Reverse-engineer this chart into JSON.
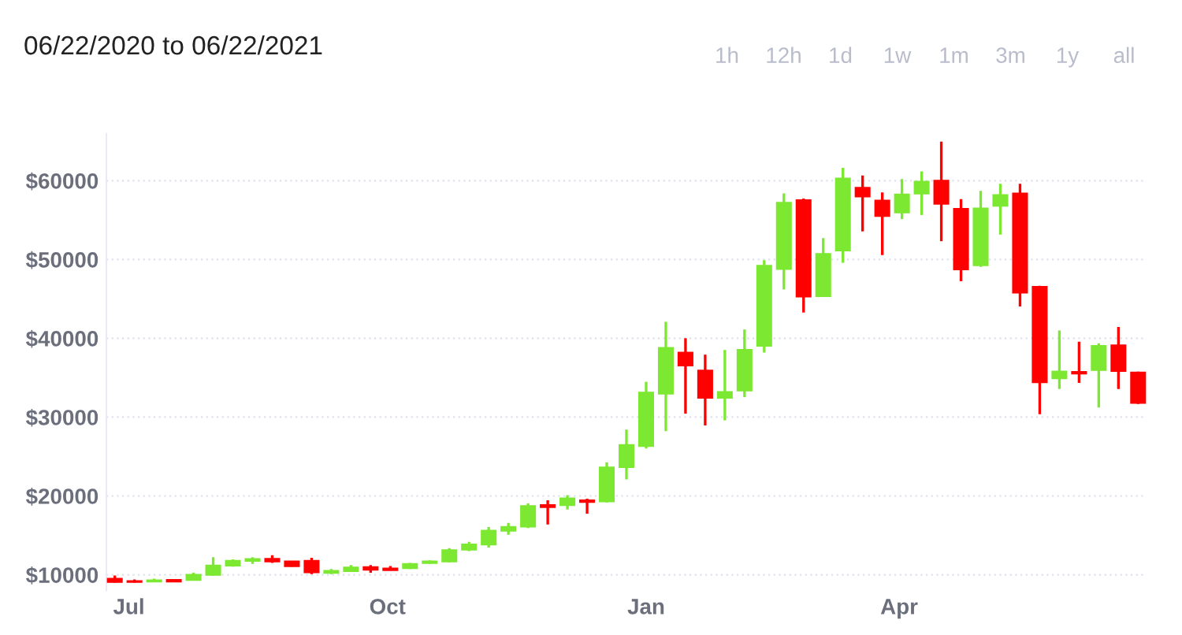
{
  "chart_data": {
    "type": "candlestick",
    "title": "06/22/2020 to 06/22/2021",
    "annotations": [
      "1h",
      "12h",
      "1d",
      "1w",
      "1m",
      "3m",
      "1y",
      "all"
    ],
    "x": [
      "2020-06-26",
      "2020-07-03",
      "2020-07-10",
      "2020-07-17",
      "2020-07-24",
      "2020-07-31",
      "2020-08-07",
      "2020-08-14",
      "2020-08-21",
      "2020-08-28",
      "2020-09-04",
      "2020-09-11",
      "2020-09-18",
      "2020-09-25",
      "2020-10-02",
      "2020-10-09",
      "2020-10-16",
      "2020-10-23",
      "2020-10-30",
      "2020-11-06",
      "2020-11-13",
      "2020-11-20",
      "2020-11-27",
      "2020-12-04",
      "2020-12-11",
      "2020-12-18",
      "2020-12-25",
      "2021-01-01",
      "2021-01-08",
      "2021-01-15",
      "2021-01-22",
      "2021-01-29",
      "2021-02-05",
      "2021-02-12",
      "2021-02-19",
      "2021-02-26",
      "2021-03-05",
      "2021-03-12",
      "2021-03-19",
      "2021-03-26",
      "2021-04-02",
      "2021-04-09",
      "2021-04-16",
      "2021-04-23",
      "2021-04-30",
      "2021-05-07",
      "2021-05-14",
      "2021-05-21",
      "2021-05-28",
      "2021-06-04",
      "2021-06-11",
      "2021-06-18",
      "2021-06-25"
    ],
    "ohlc": [
      [
        9500,
        9900,
        9000,
        9100
      ],
      [
        9200,
        9400,
        9000,
        9100
      ],
      [
        9150,
        9500,
        9100,
        9300
      ],
      [
        9350,
        9450,
        9050,
        9150
      ],
      [
        9350,
        10260,
        9300,
        10000
      ],
      [
        10000,
        12220,
        9870,
        11170
      ],
      [
        11170,
        11960,
        11040,
        11760
      ],
      [
        11760,
        12220,
        11370,
        12000
      ],
      [
        12020,
        12480,
        11500,
        11700
      ],
      [
        11690,
        11700,
        11040,
        11100
      ],
      [
        11760,
        12150,
        10070,
        10330
      ],
      [
        10250,
        10720,
        10070,
        10500
      ],
      [
        10460,
        11240,
        10390,
        10920
      ],
      [
        10960,
        11240,
        10260,
        10650
      ],
      [
        10800,
        11100,
        10520,
        10600
      ],
      [
        10850,
        11500,
        10720,
        11370
      ],
      [
        11500,
        11830,
        11370,
        11700
      ],
      [
        11700,
        13390,
        11570,
        13130
      ],
      [
        13200,
        14170,
        13000,
        13850
      ],
      [
        13850,
        16060,
        13450,
        15600
      ],
      [
        15600,
        16580,
        15080,
        16060
      ],
      [
        16120,
        19050,
        15930,
        18720
      ],
      [
        18850,
        19440,
        16380,
        18600
      ],
      [
        18850,
        20110,
        18270,
        19700
      ],
      [
        19440,
        19640,
        17750,
        19240
      ],
      [
        19310,
        24260,
        19180,
        23610
      ],
      [
        23670,
        28430,
        22110,
        26470
      ],
      [
        26340,
        34480,
        26020,
        33110
      ],
      [
        32980,
        42100,
        28230,
        38780
      ],
      [
        38190,
        40010,
        30440,
        36560
      ],
      [
        35910,
        37930,
        28950,
        32460
      ],
      [
        32460,
        38520,
        29600,
        33180
      ],
      [
        33370,
        41120,
        32530,
        38520
      ],
      [
        39040,
        49910,
        38190,
        49190
      ],
      [
        48800,
        58370,
        46200,
        57200
      ],
      [
        57530,
        57720,
        43270,
        45290
      ],
      [
        45350,
        52710,
        45290,
        50690
      ],
      [
        51150,
        61630,
        49580,
        60260
      ],
      [
        59090,
        60650,
        53560,
        57980
      ],
      [
        57460,
        58500,
        50560,
        55510
      ],
      [
        55960,
        60200,
        55120,
        58240
      ],
      [
        58370,
        61170,
        55640,
        59870
      ],
      [
        60000,
        64950,
        52320,
        57070
      ],
      [
        56420,
        57660,
        47240,
        48740
      ],
      [
        49260,
        58700,
        49060,
        56480
      ],
      [
        56810,
        59610,
        53160,
        58180
      ],
      [
        58370,
        59610,
        44050,
        45810
      ],
      [
        46520,
        46650,
        30380,
        34420
      ],
      [
        34940,
        40990,
        33570,
        35780
      ],
      [
        35720,
        39560,
        34350,
        35520
      ],
      [
        35980,
        39370,
        31230,
        39040
      ],
      [
        39100,
        41450,
        33570,
        35850
      ],
      [
        35650,
        35780,
        31680,
        31810
      ]
    ],
    "colors": [
      "#ff0000",
      "#ff0000",
      "#7de831",
      "#ff0000",
      "#7de831",
      "#7de831",
      "#7de831",
      "#7de831",
      "#ff0000",
      "#ff0000",
      "#ff0000",
      "#7de831",
      "#7de831",
      "#ff0000",
      "#ff0000",
      "#7de831",
      "#7de831",
      "#7de831",
      "#7de831",
      "#7de831",
      "#7de831",
      "#7de831",
      "#ff0000",
      "#7de831",
      "#ff0000",
      "#7de831",
      "#7de831",
      "#7de831",
      "#7de831",
      "#ff0000",
      "#ff0000",
      "#7de831",
      "#7de831",
      "#7de831",
      "#7de831",
      "#ff0000",
      "#7de831",
      "#7de831",
      "#ff0000",
      "#ff0000",
      "#7de831",
      "#7de831",
      "#ff0000",
      "#ff0000",
      "#7de831",
      "#7de831",
      "#ff0000",
      "#ff0000",
      "#7de831",
      "#ff0000",
      "#7de831",
      "#ff0000",
      "#ff0000"
    ],
    "xlim": [
      "2020-06-23",
      "2021-06-28"
    ],
    "xticks": [
      {
        "value": "2020-07-01",
        "label": "Jul"
      },
      {
        "value": "2020-10-01",
        "label": "Oct"
      },
      {
        "value": "2021-01-01",
        "label": "Jan"
      },
      {
        "value": "2021-04-01",
        "label": "Apr"
      }
    ],
    "ylim": [
      8000,
      66000
    ],
    "yticks": [
      {
        "value": 10000,
        "label": "$10000"
      },
      {
        "value": 20000,
        "label": "$20000"
      },
      {
        "value": 30000,
        "label": "$30000"
      },
      {
        "value": 40000,
        "label": "$40000"
      },
      {
        "value": 50000,
        "label": "$50000"
      },
      {
        "value": 60000,
        "label": "$60000"
      }
    ],
    "grid": "y"
  }
}
